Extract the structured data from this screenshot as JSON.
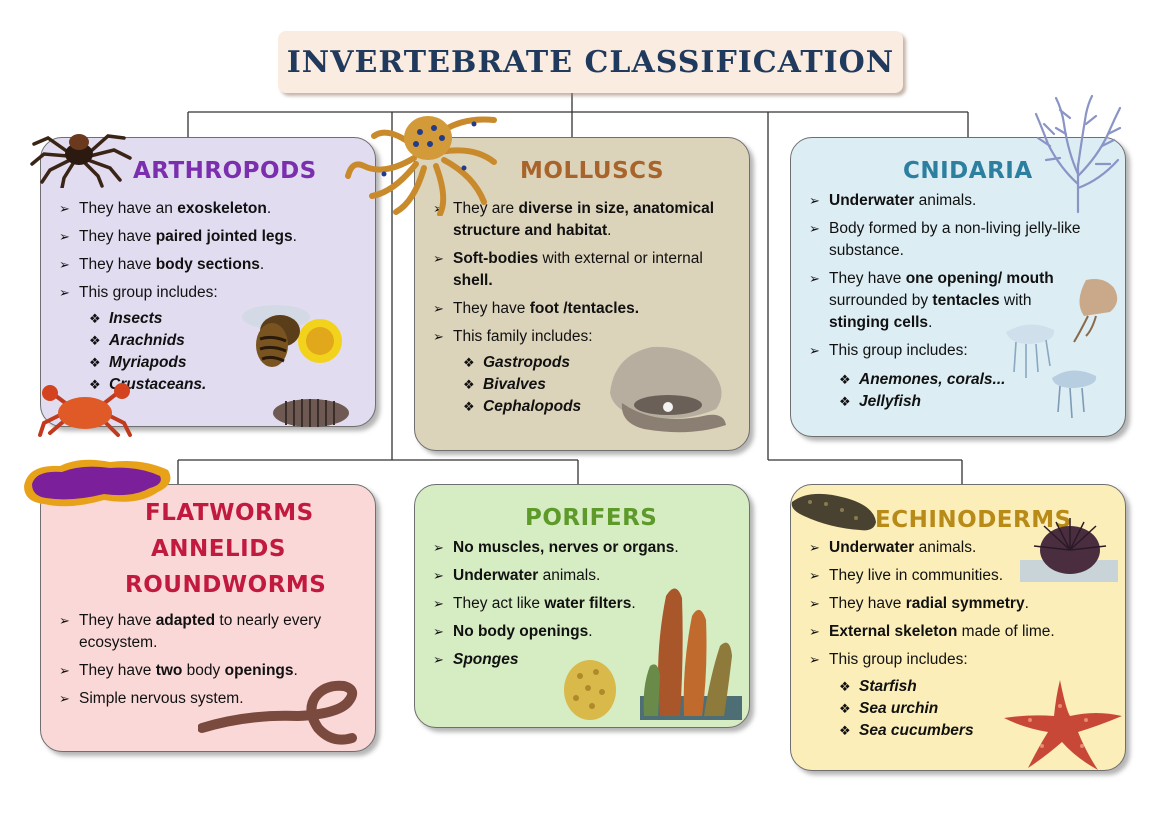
{
  "title": "INVERTEBRATE CLASSIFICATION",
  "colors": {
    "title_text": "#1f3a5c",
    "title_bg": "#fbece1",
    "arthropods_bg": "#e1dcf0",
    "arthropods_title": "#7b2fae",
    "molluscs_bg": "#dcd3bb",
    "molluscs_title": "#a8642a",
    "cnidaria_bg": "#dcedf4",
    "cnidaria_title": "#2c7f9f",
    "flatworms_bg": "#fad8d8",
    "flatworms_title": "#c21a3f",
    "porifers_bg": "#d6ecc3",
    "porifers_title": "#5d9a2a",
    "echinoderms_bg": "#fbeeb8",
    "echinoderms_title": "#b88a18"
  },
  "arthropods": {
    "title": "ARTHROPODS",
    "bullets": [
      {
        "pre": "They have an ",
        "bold": "exoskeleton",
        "post": "."
      },
      {
        "pre": "They have ",
        "bold": "paired jointed legs",
        "post": "."
      },
      {
        "pre": "They have ",
        "bold": "body sections",
        "post": "."
      },
      {
        "pre": "This group includes:",
        "bold": "",
        "post": ""
      }
    ],
    "includes": [
      "Insects",
      "Arachnids",
      "Myriapods",
      "Crustaceans."
    ],
    "images": [
      "tarantula",
      "bee",
      "crab",
      "woodlouse"
    ]
  },
  "molluscs": {
    "title": "MOLLUSCS",
    "bullets": [
      {
        "pre": "They are ",
        "bold": "diverse in size, anatomical structure and habitat",
        "post": "."
      },
      {
        "pre": "",
        "bold": "Soft-bodies",
        "post": " with external or internal ",
        "bold2": "shell."
      },
      {
        "pre": "They have ",
        "bold": "foot /tentacles.",
        "post": ""
      },
      {
        "pre": "This family includes:",
        "bold": "",
        "post": ""
      }
    ],
    "includes": [
      "Gastropods",
      "Bivalves",
      "Cephalopods"
    ],
    "images": [
      "octopus",
      "oyster"
    ]
  },
  "cnidaria": {
    "title": "CNIDARIA",
    "bullets": [
      {
        "pre": "",
        "bold": "Underwater",
        "post": " animals."
      },
      {
        "pre": "Body formed by a non-living jelly-like substance.",
        "bold": "",
        "post": ""
      },
      {
        "pre": "They have ",
        "bold": "one opening/ mouth",
        "post": " surrounded by ",
        "bold2": "tentacles",
        "post2": " with ",
        "bold3": "stinging cells",
        "post3": "."
      },
      {
        "pre": "This group includes:",
        "bold": "",
        "post": ""
      }
    ],
    "includes": [
      "Anemones, corals...",
      "Jellyfish"
    ],
    "images": [
      "coral",
      "jellyfish"
    ]
  },
  "flatworms": {
    "title_lines": [
      "FLATWORMS",
      "ANNELIDS",
      "ROUNDWORMS"
    ],
    "bullets": [
      {
        "pre": "They have ",
        "bold": "adapted",
        "post": " to nearly every ecosystem."
      },
      {
        "pre": "They have ",
        "bold": "two",
        "post": " body ",
        "bold2": "openings",
        "post2": "."
      },
      {
        "pre": "Simple nervous system.",
        "bold": "",
        "post": ""
      }
    ],
    "images": [
      "flatworm",
      "earthworm"
    ]
  },
  "porifers": {
    "title": "PORIFERS",
    "bullets": [
      {
        "pre": "",
        "bold": "No muscles, nerves or organs",
        "post": "."
      },
      {
        "pre": "",
        "bold": "Underwater",
        "post": " animals."
      },
      {
        "pre": "They act like ",
        "bold": "water filters",
        "post": "."
      },
      {
        "pre": "",
        "bold": "No body openings",
        "post": "."
      }
    ],
    "last": "Sponges",
    "images": [
      "sponge",
      "tube-sponge"
    ]
  },
  "echinoderms": {
    "title": "ECHINODERMS",
    "bullets": [
      {
        "pre": "",
        "bold": "Underwater",
        "post": " animals."
      },
      {
        "pre": "They live in communities.",
        "bold": "",
        "post": ""
      },
      {
        "pre": "They have ",
        "bold": "radial symmetry",
        "post": "."
      },
      {
        "pre": "",
        "bold": "External skeleton",
        "post": " made of lime."
      },
      {
        "pre": "This group includes:",
        "bold": "",
        "post": ""
      }
    ],
    "includes": [
      "Starfish",
      "Sea urchin",
      "Sea cucumbers"
    ],
    "images": [
      "sea-cucumber",
      "sea-urchin",
      "starfish"
    ]
  }
}
